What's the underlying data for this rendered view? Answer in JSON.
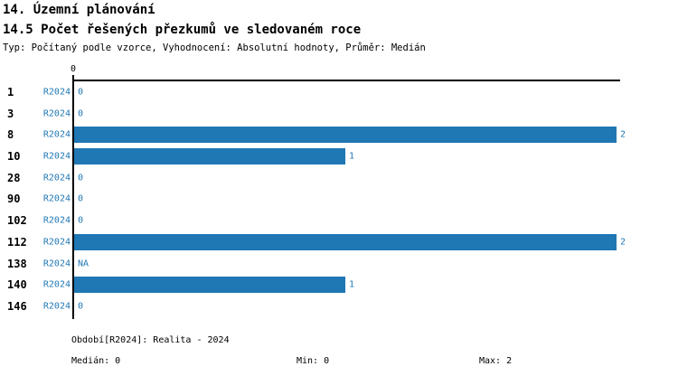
{
  "header": {
    "title": "14. Územní plánování",
    "subtitle": "14.5 Počet řešených přezkumů ve sledovaném roce",
    "meta": "Typ: Počítaný podle vzorce, Vyhodnocení: Absolutní hodnoty, Průměr: Medián"
  },
  "colors": {
    "accent": "#1f77b4",
    "axis": "#000000",
    "background": "#ffffff"
  },
  "chart_data": {
    "type": "bar",
    "orientation": "horizontal",
    "title": "14.5 Počet řešených přezkumů ve sledovaném roce",
    "categories": [
      "1",
      "3",
      "8",
      "10",
      "28",
      "90",
      "102",
      "112",
      "138",
      "140",
      "146"
    ],
    "series": [
      {
        "name": "R2024",
        "values": [
          0,
          0,
          2,
          1,
          0,
          0,
          0,
          2,
          null,
          1,
          0
        ],
        "value_labels": [
          "0",
          "0",
          "2",
          "1",
          "0",
          "0",
          "0",
          "2",
          "NA",
          "1",
          "0"
        ]
      }
    ],
    "xlim": [
      0,
      2
    ],
    "x_tick_labels": [
      "0"
    ],
    "grid": false,
    "legend_position": "none",
    "bar_color": "#1f77b4",
    "stats": {
      "median": 0,
      "min": 0,
      "max": 2
    }
  },
  "axis": {
    "zero_tick_label": "0"
  },
  "footer": {
    "period": "Období[R2024]: Realita - 2024",
    "median": "Medián: 0",
    "min": "Min: 0",
    "max": "Max: 2"
  }
}
